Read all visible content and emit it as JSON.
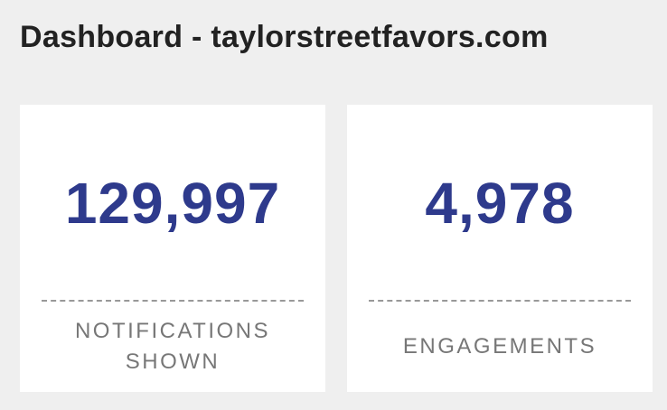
{
  "header": {
    "title": "Dashboard - taylorstreetfavors.com"
  },
  "cards": [
    {
      "value": "129,997",
      "label": "NOTIFICATIONS SHOWN"
    },
    {
      "value": "4,978",
      "label": "ENGAGEMENTS"
    }
  ]
}
